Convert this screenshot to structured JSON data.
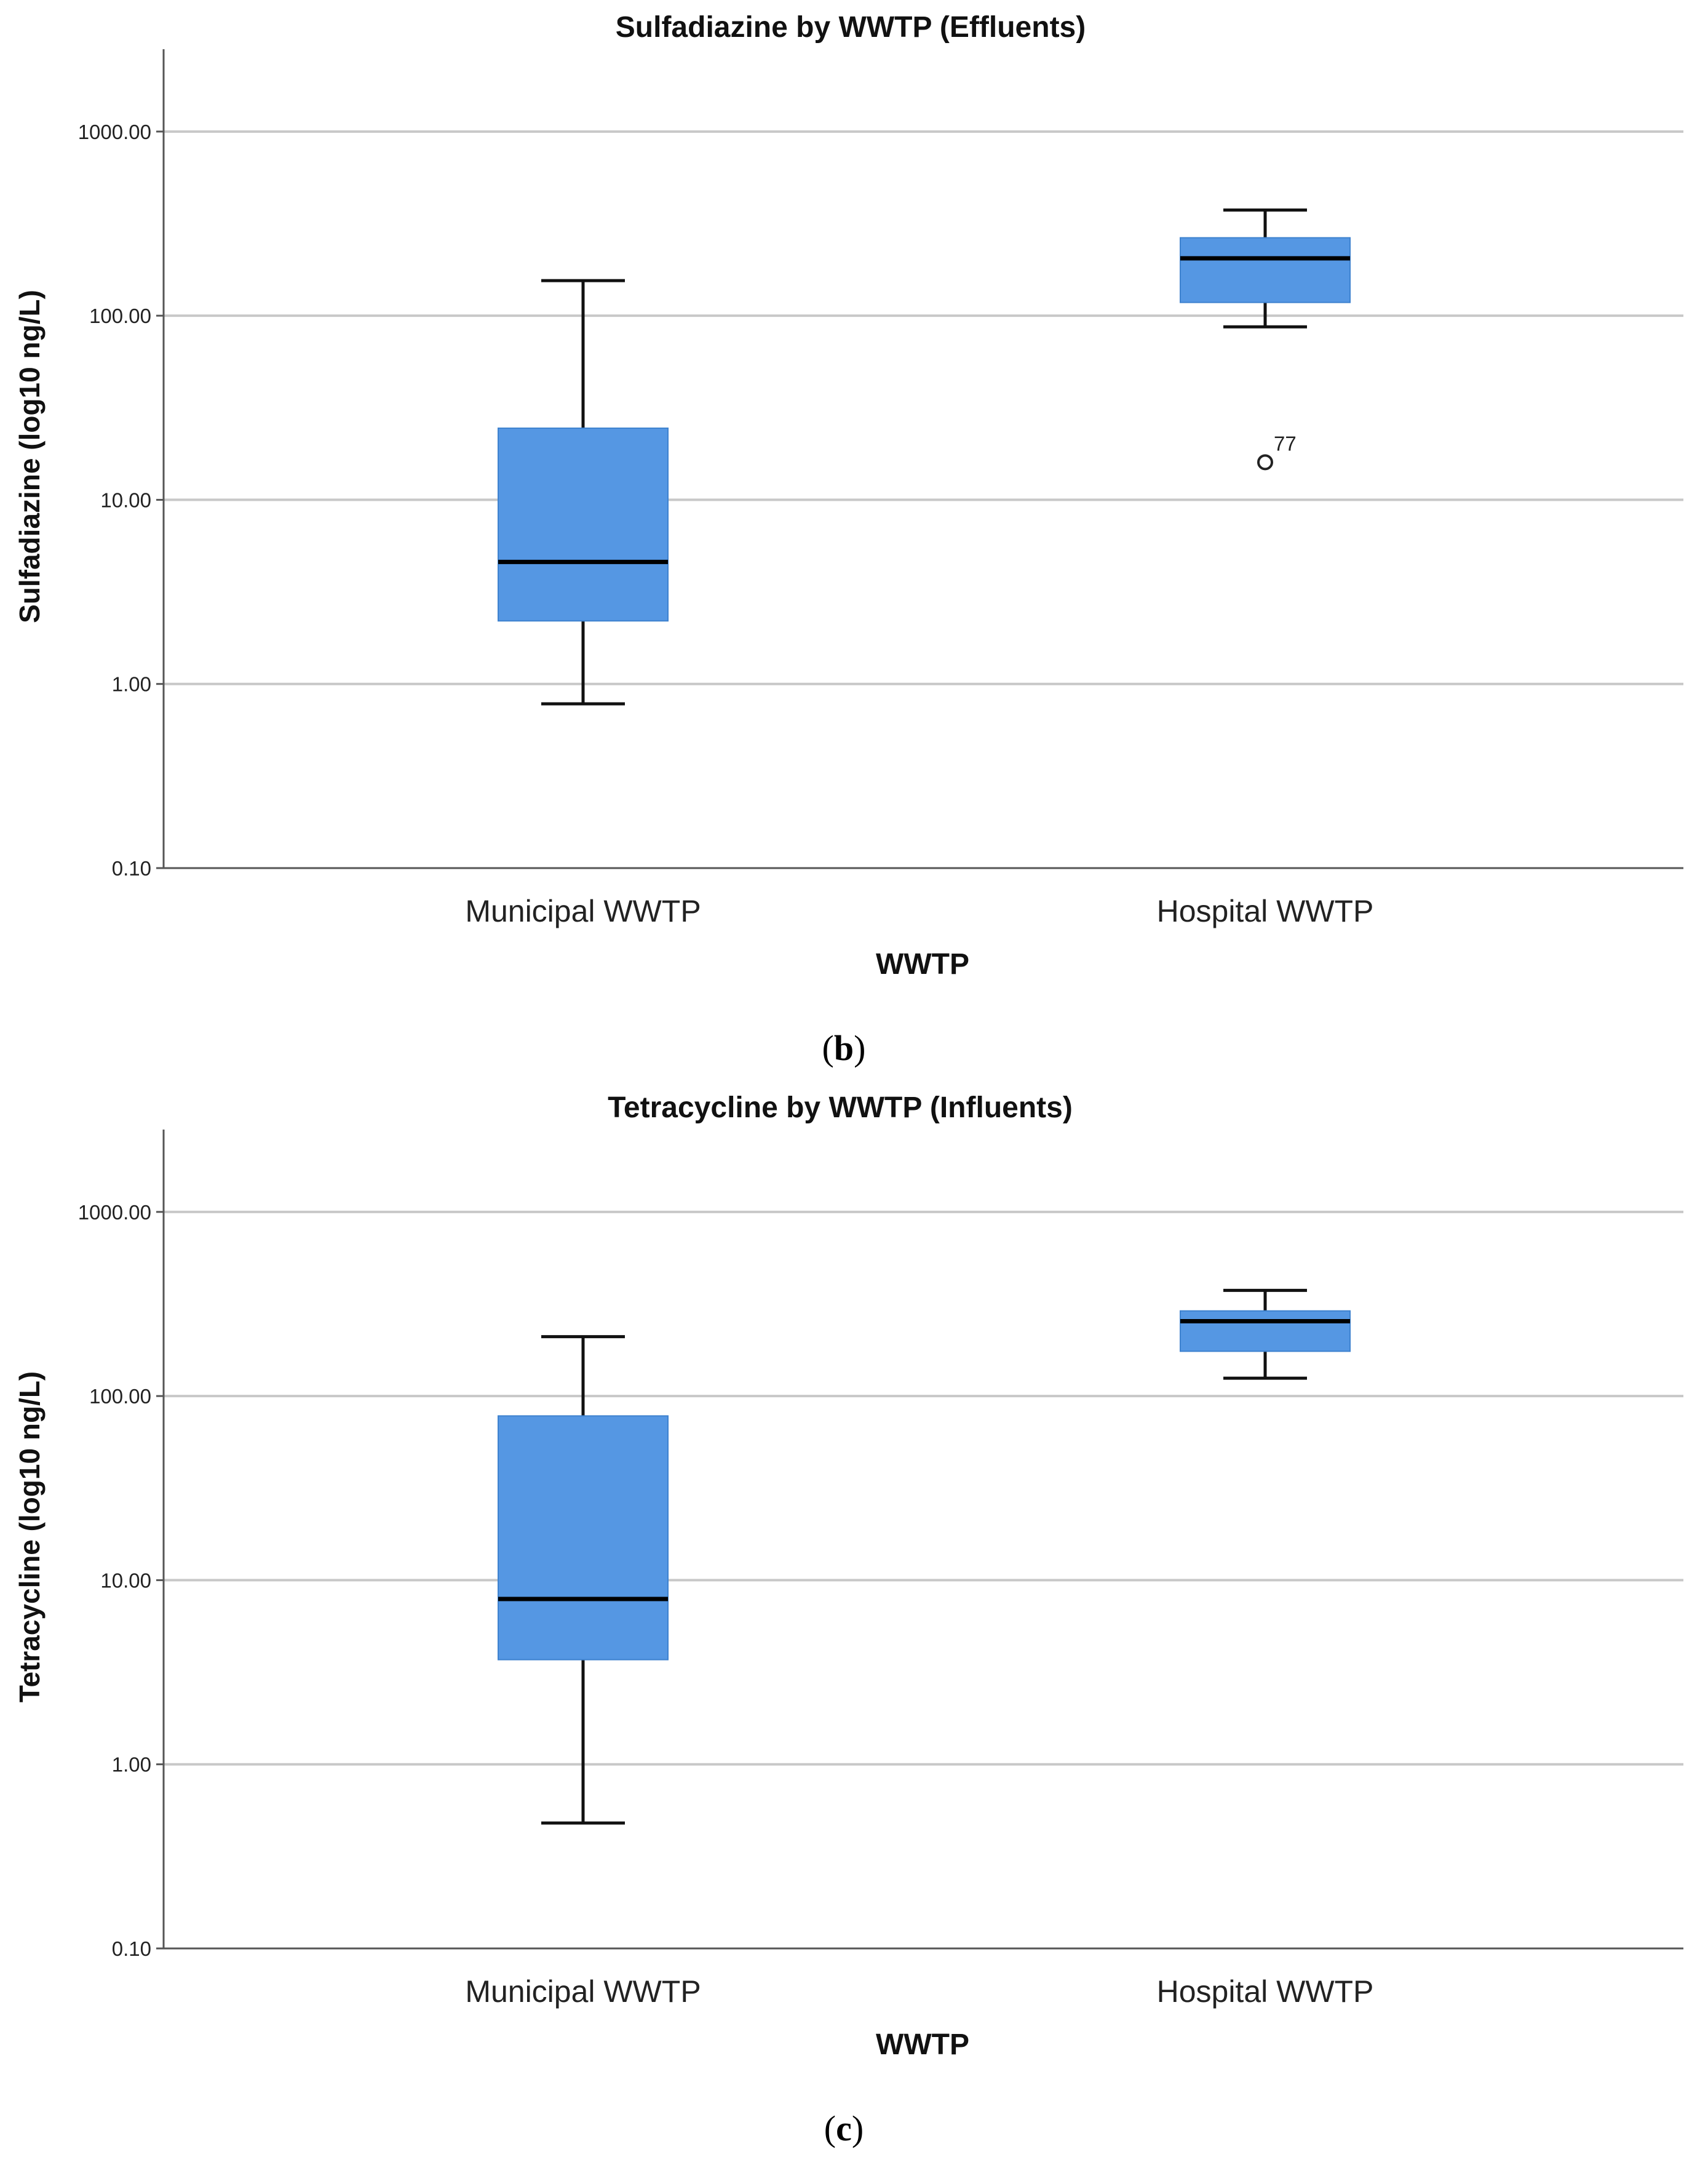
{
  "chart_data": [
    {
      "type": "boxplot",
      "panel_label": "b",
      "title": "Sulfadiazine by WWTP (Effluents)",
      "xlabel": "WWTP",
      "ylabel": "Sulfadiazine (log10 ng/L)",
      "yscale": "log10",
      "ylim": [
        0.1,
        2800
      ],
      "yticks": [
        0.1,
        1,
        10,
        100,
        1000
      ],
      "ytick_labels": [
        "0.10",
        "1.00",
        "10.00",
        "100.00",
        "1000.00"
      ],
      "grid": true,
      "box_color": "#5597e3",
      "categories": [
        "Municipal WWTP",
        "Hospital WWTP"
      ],
      "boxes": [
        {
          "category": "Municipal WWTP",
          "whisker_low": 0.78,
          "q1": 2.2,
          "median": 4.6,
          "q3": 24.5,
          "whisker_high": 155,
          "outliers": []
        },
        {
          "category": "Hospital WWTP",
          "whisker_low": 87,
          "q1": 118,
          "median": 205,
          "q3": 265,
          "whisker_high": 375,
          "outliers": [
            {
              "value": 16,
              "label": "77"
            }
          ]
        }
      ]
    },
    {
      "type": "boxplot",
      "panel_label": "c",
      "title": "Tetracycline by WWTP (Influents)",
      "xlabel": "WWTP",
      "ylabel": "Tetracycline (log10 ng/L)",
      "yscale": "log10",
      "ylim": [
        0.1,
        2800
      ],
      "yticks": [
        0.1,
        1,
        10,
        100,
        1000
      ],
      "ytick_labels": [
        "0.10",
        "1.00",
        "10.00",
        "100.00",
        "1000.00"
      ],
      "grid": true,
      "box_color": "#5597e3",
      "categories": [
        "Municipal WWTP",
        "Hospital WWTP"
      ],
      "boxes": [
        {
          "category": "Municipal WWTP",
          "whisker_low": 0.48,
          "q1": 3.7,
          "median": 7.9,
          "q3": 78,
          "whisker_high": 210,
          "outliers": []
        },
        {
          "category": "Hospital WWTP",
          "whisker_low": 125,
          "q1": 175,
          "median": 255,
          "q3": 290,
          "whisker_high": 375,
          "outliers": []
        }
      ]
    }
  ]
}
